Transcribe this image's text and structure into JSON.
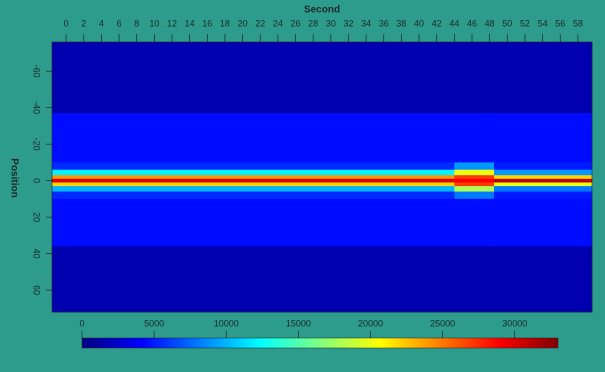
{
  "chart_data": {
    "type": "heatmap",
    "x_label": "Second",
    "y_label": "Position",
    "xbins": [
      -1.6,
      44,
      48.5,
      59.6
    ],
    "ybins": [
      -76,
      -37,
      -10,
      -6,
      -3,
      -1,
      1,
      3,
      6,
      10,
      36,
      72
    ],
    "values": [
      [
        1500,
        1500,
        1500
      ],
      [
        4500,
        4500,
        4500
      ],
      [
        5500,
        9000,
        5000
      ],
      [
        12000,
        20000,
        9000
      ],
      [
        24000,
        27000,
        22000
      ],
      [
        30000,
        29000,
        31000
      ],
      [
        22000,
        27000,
        20000
      ],
      [
        10000,
        18000,
        8000
      ],
      [
        5500,
        8000,
        5000
      ],
      [
        4500,
        4500,
        4500
      ],
      [
        1500,
        1500,
        1500
      ]
    ],
    "xlim": [
      -1.6,
      59.6
    ],
    "xticks": [
      0,
      2,
      4,
      6,
      8,
      10,
      12,
      14,
      16,
      18,
      20,
      22,
      24,
      26,
      28,
      30,
      32,
      34,
      36,
      38,
      40,
      42,
      44,
      46,
      48,
      50,
      52,
      54,
      56,
      58
    ],
    "ylim": [
      -76,
      72
    ],
    "yticks": [
      -60,
      -40,
      -20,
      0,
      20,
      40,
      60
    ],
    "clim": [
      0,
      33000
    ],
    "cticks": [
      0,
      5000,
      10000,
      15000,
      20000,
      25000,
      30000
    ],
    "colormap": "jet"
  }
}
